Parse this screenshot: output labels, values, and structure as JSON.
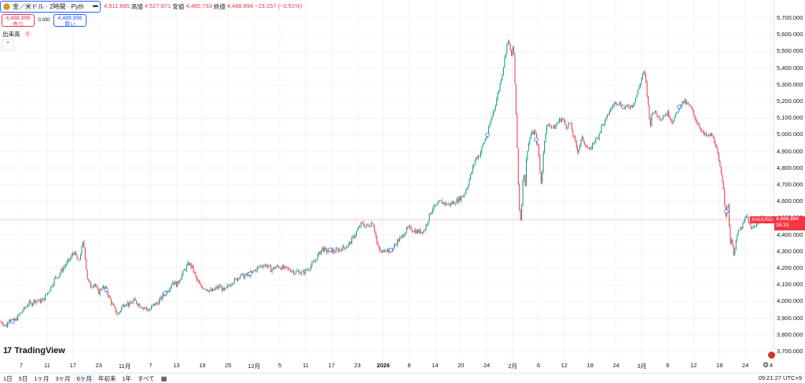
{
  "legend": {
    "title": "金／米ドル · 2時間 · Pyth",
    "more": "•••",
    "open_val": "4,511.865",
    "high_key": "高値",
    "high_val": "4,527.871",
    "low_key": "安値",
    "low_val": "4,485.733",
    "close_key": "終値",
    "close_val": "4,488.894",
    "change": "−23.157 (−0.51%)"
  },
  "trade": {
    "sell_price": "4,488.896",
    "sell_label": "売り",
    "spread": "0.000",
    "buy_price": "4,488.896",
    "buy_label": "買い"
  },
  "volume": {
    "label": "出来高",
    "warn": "!"
  },
  "collapse": "⌃",
  "logo": {
    "mark": "17",
    "text": "TradingView"
  },
  "current": {
    "symbol": "XAUUSD",
    "price": "4,488.894",
    "countdown": "38:33"
  },
  "price_ticks": [
    "5,700.000",
    "5,600.000",
    "5,500.000",
    "5,400.000",
    "5,300.000",
    "5,200.000",
    "5,100.000",
    "5,000.000",
    "4,900.000",
    "4,800.000",
    "4,700.000",
    "4,600.000",
    "4,500.000",
    "4,400.000",
    "4,300.000",
    "4,200.000",
    "4,100.000",
    "4,000.000",
    "3,900.000",
    "3,800.000",
    "3,700.000"
  ],
  "time_ticks": [
    {
      "label": "7"
    },
    {
      "label": "11"
    },
    {
      "label": "17"
    },
    {
      "label": "23"
    },
    {
      "label": "11月"
    },
    {
      "label": "7"
    },
    {
      "label": "13"
    },
    {
      "label": "19"
    },
    {
      "label": "25"
    },
    {
      "label": "12月"
    },
    {
      "label": "5"
    },
    {
      "label": "11"
    },
    {
      "label": "17"
    },
    {
      "label": "23"
    },
    {
      "label": "2026",
      "bold": true
    },
    {
      "label": "8"
    },
    {
      "label": "14"
    },
    {
      "label": "20"
    },
    {
      "label": "24"
    },
    {
      "label": "2月"
    },
    {
      "label": "6"
    },
    {
      "label": "12"
    },
    {
      "label": "18"
    },
    {
      "label": "24"
    },
    {
      "label": "3月"
    },
    {
      "label": "6"
    },
    {
      "label": "12"
    },
    {
      "label": "18"
    },
    {
      "label": "24"
    },
    {
      "label": "4"
    }
  ],
  "ranges": [
    "1日",
    "5日",
    "1ヶ月",
    "3ヶ月",
    "6ヶ月",
    "年初来",
    "1年",
    "すべて"
  ],
  "active_range": "6ヶ月",
  "clock": "09:21:27 UTC+9",
  "colors": {
    "up": "#089981",
    "down": "#f23645",
    "accent": "#2962ff",
    "grid": "#f0f3fa"
  },
  "chart_data": {
    "type": "candlestick",
    "symbol": "XAUUSD",
    "y_range": [
      3650,
      5750
    ],
    "path": [
      [
        0,
        3880
      ],
      [
        4,
        3870
      ],
      [
        8,
        3850
      ],
      [
        12,
        3905
      ],
      [
        16,
        3880
      ],
      [
        20,
        3890
      ],
      [
        25,
        3925
      ],
      [
        30,
        3950
      ],
      [
        35,
        3985
      ],
      [
        40,
        3990
      ],
      [
        45,
        4010
      ],
      [
        50,
        4000
      ],
      [
        55,
        4010
      ],
      [
        60,
        4050
      ],
      [
        65,
        4090
      ],
      [
        70,
        4140
      ],
      [
        75,
        4160
      ],
      [
        80,
        4200
      ],
      [
        85,
        4230
      ],
      [
        90,
        4260
      ],
      [
        93,
        4300
      ],
      [
        97,
        4270
      ],
      [
        100,
        4230
      ],
      [
        103,
        4300
      ],
      [
        106,
        4360
      ],
      [
        108,
        4280
      ],
      [
        111,
        4140
      ],
      [
        115,
        4090
      ],
      [
        120,
        4110
      ],
      [
        125,
        4050
      ],
      [
        130,
        4090
      ],
      [
        135,
        4070
      ],
      [
        140,
        4010
      ],
      [
        145,
        3960
      ],
      [
        150,
        3920
      ],
      [
        155,
        3970
      ],
      [
        160,
        3995
      ],
      [
        165,
        3980
      ],
      [
        170,
        4005
      ],
      [
        175,
        3990
      ],
      [
        180,
        3970
      ],
      [
        185,
        3960
      ],
      [
        190,
        3945
      ],
      [
        195,
        3980
      ],
      [
        200,
        3990
      ],
      [
        205,
        4020
      ],
      [
        210,
        4050
      ],
      [
        215,
        4080
      ],
      [
        220,
        4120
      ],
      [
        225,
        4100
      ],
      [
        230,
        4150
      ],
      [
        235,
        4190
      ],
      [
        240,
        4230
      ],
      [
        245,
        4200
      ],
      [
        250,
        4130
      ],
      [
        255,
        4090
      ],
      [
        260,
        4085
      ],
      [
        265,
        4070
      ],
      [
        270,
        4060
      ],
      [
        275,
        4080
      ],
      [
        280,
        4090
      ],
      [
        285,
        4060
      ],
      [
        290,
        4090
      ],
      [
        295,
        4120
      ],
      [
        300,
        4130
      ],
      [
        305,
        4160
      ],
      [
        310,
        4150
      ],
      [
        315,
        4160
      ],
      [
        320,
        4170
      ],
      [
        325,
        4190
      ],
      [
        330,
        4210
      ],
      [
        335,
        4220
      ],
      [
        340,
        4215
      ],
      [
        345,
        4190
      ],
      [
        350,
        4205
      ],
      [
        355,
        4210
      ],
      [
        360,
        4200
      ],
      [
        365,
        4195
      ],
      [
        370,
        4190
      ],
      [
        375,
        4175
      ],
      [
        380,
        4180
      ],
      [
        385,
        4170
      ],
      [
        390,
        4190
      ],
      [
        395,
        4210
      ],
      [
        400,
        4240
      ],
      [
        405,
        4280
      ],
      [
        410,
        4320
      ],
      [
        415,
        4300
      ],
      [
        420,
        4310
      ],
      [
        425,
        4300
      ],
      [
        430,
        4310
      ],
      [
        435,
        4320
      ],
      [
        440,
        4330
      ],
      [
        445,
        4350
      ],
      [
        450,
        4390
      ],
      [
        455,
        4430
      ],
      [
        460,
        4470
      ],
      [
        465,
        4450
      ],
      [
        470,
        4460
      ],
      [
        474,
        4480
      ],
      [
        477,
        4420
      ],
      [
        480,
        4330
      ],
      [
        485,
        4290
      ],
      [
        490,
        4320
      ],
      [
        495,
        4300
      ],
      [
        500,
        4320
      ],
      [
        505,
        4360
      ],
      [
        510,
        4380
      ],
      [
        515,
        4420
      ],
      [
        520,
        4440
      ],
      [
        525,
        4430
      ],
      [
        530,
        4420
      ],
      [
        535,
        4420
      ],
      [
        540,
        4430
      ],
      [
        545,
        4500
      ],
      [
        550,
        4560
      ],
      [
        555,
        4570
      ],
      [
        560,
        4600
      ],
      [
        565,
        4590
      ],
      [
        570,
        4580
      ],
      [
        575,
        4590
      ],
      [
        580,
        4600
      ],
      [
        585,
        4620
      ],
      [
        590,
        4640
      ],
      [
        595,
        4700
      ],
      [
        600,
        4780
      ],
      [
        605,
        4860
      ],
      [
        610,
        4880
      ],
      [
        615,
        4950
      ],
      [
        620,
        5000
      ],
      [
        625,
        5100
      ],
      [
        630,
        5180
      ],
      [
        635,
        5280
      ],
      [
        640,
        5400
      ],
      [
        645,
        5550
      ],
      [
        648,
        5560
      ],
      [
        650,
        5450
      ],
      [
        653,
        5550
      ],
      [
        655,
        5300
      ],
      [
        658,
        4900
      ],
      [
        660,
        4600
      ],
      [
        662,
        4480
      ],
      [
        664,
        4620
      ],
      [
        666,
        4800
      ],
      [
        668,
        4700
      ],
      [
        670,
        4900
      ],
      [
        675,
        5000
      ],
      [
        680,
        5020
      ],
      [
        685,
        4900
      ],
      [
        688,
        4700
      ],
      [
        690,
        4800
      ],
      [
        692,
        4950
      ],
      [
        695,
        5050
      ],
      [
        700,
        5060
      ],
      [
        705,
        5040
      ],
      [
        710,
        5080
      ],
      [
        715,
        5100
      ],
      [
        720,
        5050
      ],
      [
        725,
        5070
      ],
      [
        730,
        4980
      ],
      [
        735,
        4900
      ],
      [
        740,
        4980
      ],
      [
        745,
        4940
      ],
      [
        750,
        4900
      ],
      [
        755,
        4960
      ],
      [
        760,
        4980
      ],
      [
        765,
        5050
      ],
      [
        770,
        5080
      ],
      [
        775,
        5140
      ],
      [
        780,
        5180
      ],
      [
        785,
        5200
      ],
      [
        790,
        5180
      ],
      [
        795,
        5160
      ],
      [
        800,
        5170
      ],
      [
        805,
        5180
      ],
      [
        810,
        5240
      ],
      [
        815,
        5320
      ],
      [
        818,
        5380
      ],
      [
        821,
        5340
      ],
      [
        824,
        5200
      ],
      [
        827,
        5050
      ],
      [
        830,
        5150
      ],
      [
        835,
        5120
      ],
      [
        840,
        5100
      ],
      [
        845,
        5120
      ],
      [
        850,
        5130
      ],
      [
        855,
        5080
      ],
      [
        860,
        5120
      ],
      [
        865,
        5180
      ],
      [
        870,
        5200
      ],
      [
        875,
        5180
      ],
      [
        880,
        5150
      ],
      [
        885,
        5090
      ],
      [
        890,
        5050
      ],
      [
        895,
        5000
      ],
      [
        900,
        4990
      ],
      [
        905,
        5000
      ],
      [
        910,
        4950
      ],
      [
        915,
        4820
      ],
      [
        920,
        4700
      ],
      [
        923,
        4520
      ],
      [
        926,
        4580
      ],
      [
        929,
        4350
      ],
      [
        931,
        4400
      ],
      [
        933,
        4250
      ],
      [
        936,
        4380
      ],
      [
        940,
        4420
      ],
      [
        945,
        4460
      ],
      [
        950,
        4520
      ],
      [
        955,
        4430
      ],
      [
        960,
        4460
      ],
      [
        965,
        4480
      ],
      [
        970,
        4500
      ],
      [
        975,
        4480
      ],
      [
        980,
        4490
      ]
    ]
  }
}
